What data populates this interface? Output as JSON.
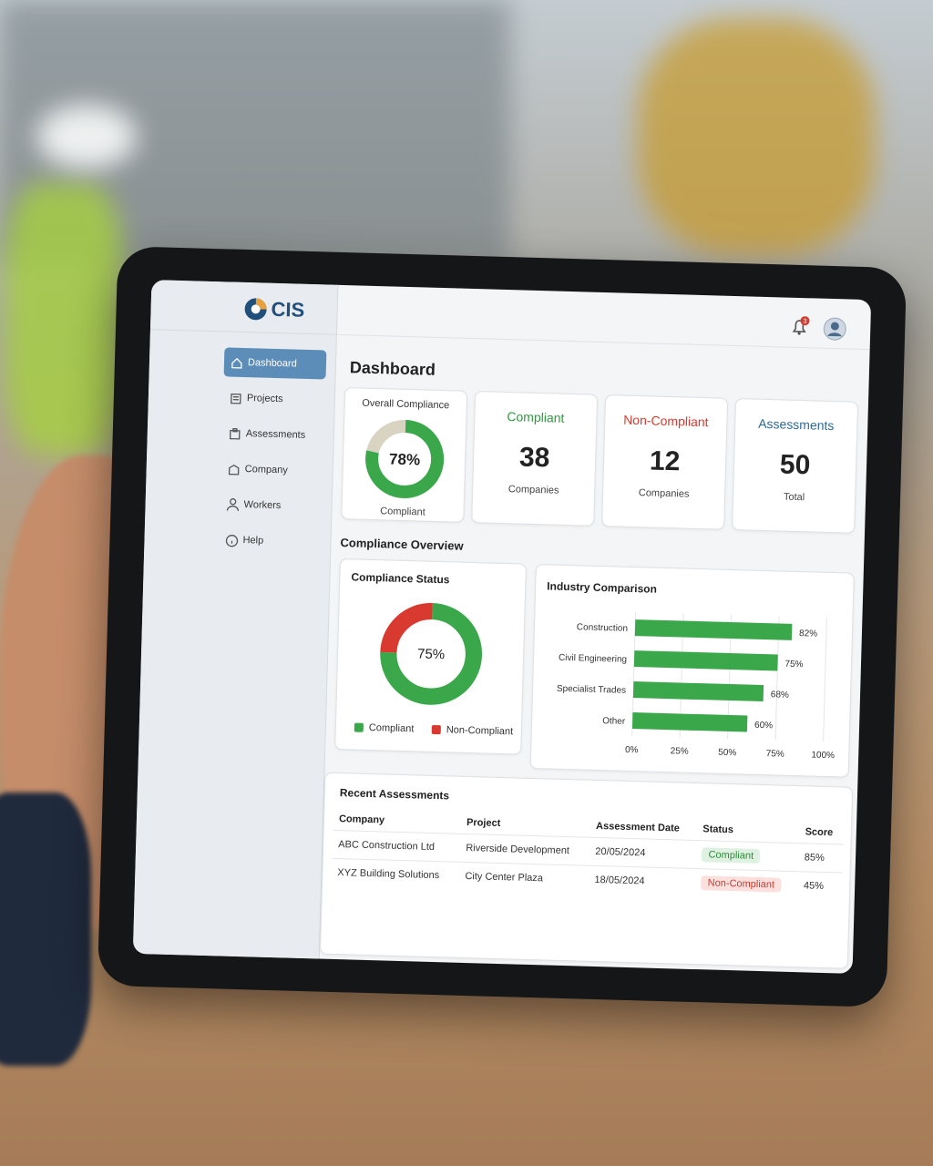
{
  "app": {
    "logo": "CIS",
    "notifications": 3,
    "page_title": "Dashboard",
    "nav": [
      "Dashboard",
      "Projects",
      "Assessments",
      "Company",
      "Workers",
      "Help"
    ],
    "stats": [
      {
        "title": "Compliant",
        "value": 38,
        "unit": "Companies"
      },
      {
        "title": "Non-Compliant",
        "value": 12,
        "unit": "Companies"
      },
      {
        "title": "Assessments",
        "value": 50,
        "unit": "Total"
      }
    ],
    "section_title": "Compliance Overview",
    "table": {
      "title": "Recent Assessments",
      "columns": [
        "Company",
        "Project",
        "Assessment Date",
        "Status",
        "Score"
      ],
      "rows": [
        [
          "ABC Construction Ltd",
          "Riverside Development",
          "20/05/2024",
          "Compliant",
          "85%"
        ],
        [
          "XYZ Building Solutions",
          "City Center Plaza",
          "18/05/2024",
          "Non-Compliant",
          "45%"
        ]
      ]
    }
  },
  "chart_data": [
    {
      "type": "donut",
      "title": "Overall Compliance",
      "categories": [
        "Compliant"
      ],
      "values": [
        78
      ],
      "value_labels": [
        "78%"
      ],
      "color": "#3aa84a"
    },
    {
      "type": "donut",
      "title": "Compliance Status",
      "categories": [
        "Compliant",
        "Non-Compliant"
      ],
      "values": [
        75,
        25
      ],
      "colors": [
        "#3aa84a",
        "#d93a2f"
      ],
      "center_label": "75%"
    },
    {
      "type": "bar",
      "orientation": "horizontal",
      "title": "Industry Comparison",
      "categories": [
        "Construction",
        "Civil Engineering",
        "Specialist Trades",
        "Other"
      ],
      "values": [
        82,
        75,
        68,
        60
      ],
      "value_labels": [
        "82%",
        "75%",
        "68%",
        "60%"
      ],
      "color": "#3aa84a",
      "xlim": [
        0,
        100
      ],
      "xticks": [
        {
          "value": 0,
          "label": "0%"
        },
        {
          "value": 25,
          "label": "25%"
        },
        {
          "value": 50,
          "label": "50%"
        },
        {
          "value": 75,
          "label": "75%"
        },
        {
          "value": 100,
          "label": "100%"
        }
      ],
      "grid": true
    }
  ]
}
